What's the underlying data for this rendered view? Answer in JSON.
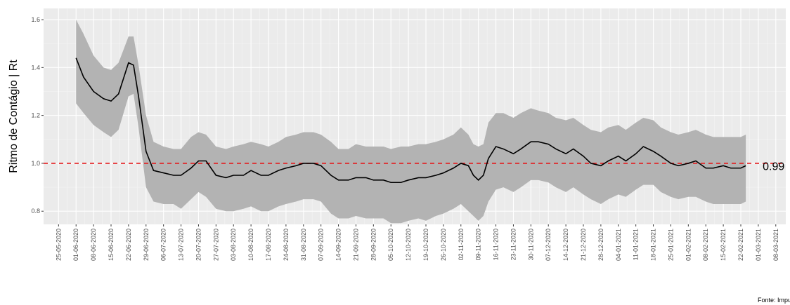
{
  "chart_data": {
    "type": "line",
    "y_label": "Ritmo de Contágio | Rt",
    "source": "Fonte: Impulso",
    "x": [
      "01-06-2020",
      "04-06-2020",
      "08-06-2020",
      "12-06-2020",
      "15-06-2020",
      "18-06-2020",
      "22-06-2020",
      "24-06-2020",
      "26-06-2020",
      "29-06-2020",
      "02-07-2020",
      "06-07-2020",
      "10-07-2020",
      "13-07-2020",
      "17-07-2020",
      "20-07-2020",
      "23-07-2020",
      "27-07-2020",
      "31-07-2020",
      "03-08-2020",
      "07-08-2020",
      "10-08-2020",
      "14-08-2020",
      "17-08-2020",
      "21-08-2020",
      "24-08-2020",
      "28-08-2020",
      "31-08-2020",
      "04-09-2020",
      "07-09-2020",
      "11-09-2020",
      "14-09-2020",
      "18-09-2020",
      "21-09-2020",
      "25-09-2020",
      "28-09-2020",
      "02-10-2020",
      "05-10-2020",
      "09-10-2020",
      "12-10-2020",
      "16-10-2020",
      "19-10-2020",
      "23-10-2020",
      "26-10-2020",
      "30-10-2020",
      "02-11-2020",
      "05-11-2020",
      "07-11-2020",
      "09-11-2020",
      "11-11-2020",
      "13-11-2020",
      "16-11-2020",
      "19-11-2020",
      "23-11-2020",
      "26-11-2020",
      "30-11-2020",
      "03-12-2020",
      "07-12-2020",
      "10-12-2020",
      "14-12-2020",
      "17-12-2020",
      "21-12-2020",
      "24-12-2020",
      "28-12-2020",
      "31-12-2020",
      "04-01-2021",
      "07-01-2021",
      "11-01-2021",
      "14-01-2021",
      "18-01-2021",
      "21-01-2021",
      "25-01-2021",
      "28-01-2021",
      "01-02-2021",
      "04-02-2021",
      "08-02-2021",
      "11-02-2021",
      "15-02-2021",
      "18-02-2021",
      "22-02-2021",
      "24-02-2021"
    ],
    "values": [
      1.44,
      1.36,
      1.3,
      1.27,
      1.26,
      1.29,
      1.42,
      1.41,
      1.28,
      1.05,
      0.97,
      0.96,
      0.95,
      0.95,
      0.98,
      1.01,
      1.01,
      0.95,
      0.94,
      0.95,
      0.95,
      0.97,
      0.95,
      0.95,
      0.97,
      0.98,
      0.99,
      1.0,
      1.0,
      0.99,
      0.95,
      0.93,
      0.93,
      0.94,
      0.94,
      0.93,
      0.93,
      0.92,
      0.92,
      0.93,
      0.94,
      0.94,
      0.95,
      0.96,
      0.98,
      1.0,
      0.99,
      0.95,
      0.93,
      0.95,
      1.02,
      1.07,
      1.06,
      1.04,
      1.06,
      1.09,
      1.09,
      1.08,
      1.06,
      1.04,
      1.06,
      1.03,
      1.0,
      0.99,
      1.01,
      1.03,
      1.01,
      1.04,
      1.07,
      1.05,
      1.03,
      1.0,
      0.99,
      1.0,
      1.01,
      0.98,
      0.98,
      0.99,
      0.98,
      0.98,
      0.99
    ],
    "lower": [
      1.25,
      1.21,
      1.16,
      1.13,
      1.11,
      1.14,
      1.28,
      1.29,
      1.15,
      0.9,
      0.84,
      0.83,
      0.83,
      0.81,
      0.85,
      0.88,
      0.86,
      0.81,
      0.8,
      0.8,
      0.81,
      0.82,
      0.8,
      0.8,
      0.82,
      0.83,
      0.84,
      0.85,
      0.85,
      0.84,
      0.79,
      0.77,
      0.77,
      0.78,
      0.77,
      0.77,
      0.77,
      0.75,
      0.75,
      0.76,
      0.77,
      0.76,
      0.78,
      0.79,
      0.81,
      0.83,
      0.8,
      0.78,
      0.76,
      0.78,
      0.84,
      0.89,
      0.9,
      0.88,
      0.9,
      0.93,
      0.93,
      0.92,
      0.9,
      0.88,
      0.9,
      0.87,
      0.85,
      0.83,
      0.85,
      0.87,
      0.86,
      0.89,
      0.91,
      0.91,
      0.88,
      0.86,
      0.85,
      0.86,
      0.86,
      0.84,
      0.83,
      0.83,
      0.83,
      0.83,
      0.84
    ],
    "upper": [
      1.6,
      1.54,
      1.45,
      1.4,
      1.39,
      1.42,
      1.53,
      1.53,
      1.41,
      1.2,
      1.09,
      1.07,
      1.06,
      1.06,
      1.11,
      1.13,
      1.12,
      1.07,
      1.06,
      1.07,
      1.08,
      1.09,
      1.08,
      1.07,
      1.09,
      1.11,
      1.12,
      1.13,
      1.13,
      1.12,
      1.09,
      1.06,
      1.06,
      1.08,
      1.07,
      1.07,
      1.07,
      1.06,
      1.07,
      1.07,
      1.08,
      1.08,
      1.09,
      1.1,
      1.12,
      1.15,
      1.12,
      1.08,
      1.07,
      1.08,
      1.17,
      1.21,
      1.21,
      1.19,
      1.21,
      1.23,
      1.22,
      1.21,
      1.19,
      1.18,
      1.19,
      1.16,
      1.14,
      1.13,
      1.15,
      1.16,
      1.14,
      1.17,
      1.19,
      1.18,
      1.15,
      1.13,
      1.12,
      1.13,
      1.14,
      1.12,
      1.11,
      1.11,
      1.11,
      1.11,
      1.12
    ],
    "line_color": "#000000",
    "band_color": "#b3b3b3",
    "hline": {
      "value": 1,
      "color": "#e41a1c"
    },
    "end_label": 0.99,
    "xlim": [
      "19-05-2020",
      "12-03-2021"
    ],
    "xticks": [
      "25-05-2020",
      "01-06-2020",
      "08-06-2020",
      "15-06-2020",
      "22-06-2020",
      "29-06-2020",
      "06-07-2020",
      "13-07-2020",
      "20-07-2020",
      "27-07-2020",
      "03-08-2020",
      "10-08-2020",
      "17-08-2020",
      "24-08-2020",
      "31-08-2020",
      "07-09-2020",
      "14-09-2020",
      "21-09-2020",
      "28-09-2020",
      "05-10-2020",
      "12-10-2020",
      "19-10-2020",
      "26-10-2020",
      "02-11-2020",
      "09-11-2020",
      "16-11-2020",
      "23-11-2020",
      "30-11-2020",
      "07-12-2020",
      "14-12-2020",
      "21-12-2020",
      "28-12-2020",
      "04-01-2021",
      "11-01-2021",
      "18-01-2021",
      "25-01-2021",
      "01-02-2021",
      "08-02-2021",
      "15-02-2021",
      "22-02-2021",
      "01-03-2021",
      "08-03-2021"
    ],
    "ylim": [
      0.745,
      1.647
    ],
    "yticks": [
      0.8,
      {
        "value": 1.0,
        "label": "1.0"
      },
      1.2,
      1.4,
      1.6
    ],
    "grid": true
  }
}
